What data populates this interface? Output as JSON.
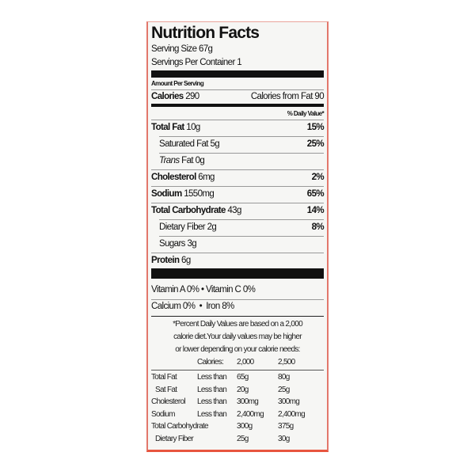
{
  "title": "Nutrition Facts",
  "serving_size": "Serving Size 67g",
  "servings_per_container": "Servings Per Container 1",
  "amount_per_serving": "Amount Per Serving",
  "calories": {
    "label": "Calories",
    "value": "290",
    "from_fat": "Calories from Fat 90"
  },
  "dv_header": "% Daily Value*",
  "nutrients": [
    {
      "label": "Total Fat",
      "amount": "10g",
      "dv": "15%"
    },
    {
      "label": "Saturated Fat",
      "amount": "5g",
      "dv": "25%"
    },
    {
      "label": "Trans",
      "label2": "Fat",
      "amount": "0g",
      "dv": ""
    },
    {
      "label": "Cholesterol",
      "amount": "6mg",
      "dv": "2%"
    },
    {
      "label": "Sodium",
      "amount": "1550mg",
      "dv": "65%"
    },
    {
      "label": "Total Carbohydrate",
      "amount": "43g",
      "dv": "14%"
    },
    {
      "label": "Dietary Fiber",
      "amount": "2g",
      "dv": "8%"
    },
    {
      "label": "Sugars",
      "amount": "3g",
      "dv": ""
    },
    {
      "label": "Protein",
      "amount": "6g",
      "dv": ""
    }
  ],
  "vitamins": {
    "a": "Vitamin A 0%",
    "c": "Vitamin C 0%",
    "calcium": "Calcium 0%",
    "iron": "Iron 8%",
    "sep": "•"
  },
  "footnote": [
    "*Percent Daily Values are based on a 2,000",
    "calorie diet.Your daily values may be higher",
    "or lower depending on your calorie needs:"
  ],
  "footnote_header": {
    "label": "Calories:",
    "c2000": "2,000",
    "c2500": "2,500"
  },
  "footnote_rows": [
    [
      "Total Fat",
      "Less than",
      "65g",
      "80g"
    ],
    [
      "Sat Fat",
      "Less than",
      "20g",
      "25g"
    ],
    [
      "Cholesterol",
      "Less than",
      "300mg",
      "300mg"
    ],
    [
      "Sodium",
      "Less than",
      "2,400mg",
      "2,400mg"
    ],
    [
      "Total Carbohydrate",
      "",
      "300g",
      "375g"
    ],
    [
      "Dietary Fiber",
      "",
      "25g",
      "30g"
    ]
  ]
}
